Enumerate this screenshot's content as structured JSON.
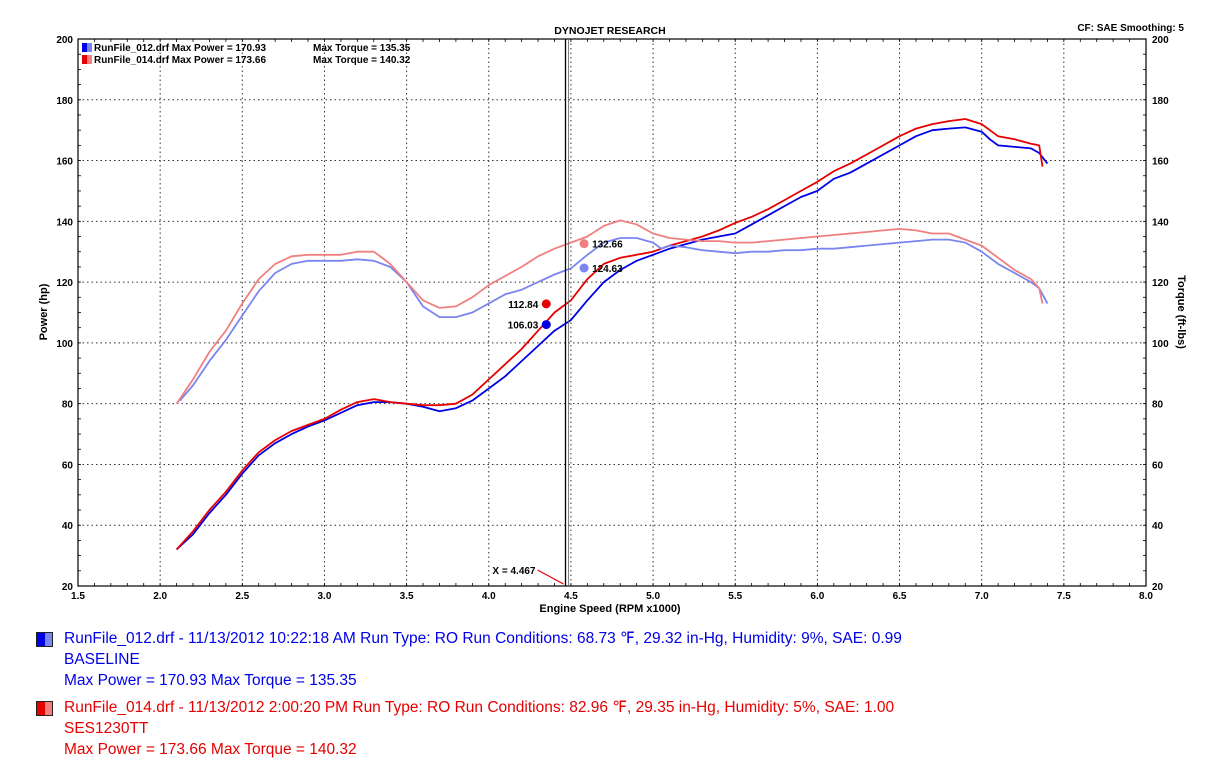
{
  "header": {
    "title": "DYNOJET RESEARCH",
    "cf_label": "CF: SAE  Smoothing: 5"
  },
  "chart_data": {
    "type": "line",
    "title": "DYNOJET RESEARCH",
    "xlabel": "Engine Speed (RPM x1000)",
    "ylabel": "Power (hp)",
    "y2label": "Torque (ft-lbs)",
    "xlim": [
      1.5,
      8.0
    ],
    "ylim": [
      20,
      200
    ],
    "y2lim": [
      20,
      200
    ],
    "x_ticks": [
      "1.5",
      "2.0",
      "2.5",
      "3.0",
      "3.5",
      "4.0",
      "4.5",
      "5.0",
      "5.5",
      "6.0",
      "6.5",
      "7.0",
      "7.5",
      "8.0"
    ],
    "y_ticks": [
      "20",
      "40",
      "60",
      "80",
      "100",
      "120",
      "140",
      "160",
      "180",
      "200"
    ],
    "grid": true,
    "legend_position": "top-left",
    "legend": [
      {
        "run": "RunFile_012.drf",
        "power_text": "Max Power = 170.93",
        "torque_text": "Max Torque = 135.35",
        "color": "#0000e6"
      },
      {
        "run": "RunFile_014.drf",
        "power_text": "Max Power = 173.66",
        "torque_text": "Max Torque = 140.32",
        "color": "#e60000"
      }
    ],
    "cursor": {
      "x": 4.467,
      "label": "X = 4.467"
    },
    "markers": [
      {
        "series": "RunFile_014.drf torque",
        "x": 4.58,
        "y": 132.66,
        "label": "132.66",
        "color": "#f08080"
      },
      {
        "series": "RunFile_012.drf torque",
        "x": 4.58,
        "y": 124.63,
        "label": "124.63",
        "color": "#7a85f0"
      },
      {
        "series": "RunFile_014.drf power",
        "x": 4.35,
        "y": 112.84,
        "label": "112.84",
        "color": "#e60000"
      },
      {
        "series": "RunFile_012.drf power",
        "x": 4.35,
        "y": 106.03,
        "label": "106.03",
        "color": "#0000e6"
      }
    ],
    "series": [
      {
        "name": "RunFile_012.drf",
        "kind": "power",
        "color": "#0000e6",
        "x": [
          2.1,
          2.2,
          2.3,
          2.4,
          2.5,
          2.6,
          2.7,
          2.8,
          2.9,
          3.0,
          3.1,
          3.2,
          3.3,
          3.4,
          3.5,
          3.6,
          3.7,
          3.8,
          3.9,
          4.0,
          4.1,
          4.2,
          4.3,
          4.4,
          4.5,
          4.6,
          4.7,
          4.8,
          4.9,
          5.0,
          5.1,
          5.2,
          5.3,
          5.4,
          5.5,
          5.6,
          5.7,
          5.8,
          5.9,
          6.0,
          6.1,
          6.2,
          6.3,
          6.4,
          6.5,
          6.6,
          6.7,
          6.8,
          6.9,
          7.0,
          7.05,
          7.1,
          7.2,
          7.3,
          7.35,
          7.4
        ],
        "y": [
          32,
          37,
          44,
          50,
          57,
          63,
          67,
          70,
          72.5,
          74.5,
          77,
          79.5,
          80.5,
          80.5,
          80,
          79,
          77.5,
          78.5,
          81,
          85,
          89,
          94,
          99,
          104,
          107.5,
          114,
          120,
          124,
          127,
          129,
          131,
          132.5,
          134,
          135,
          136,
          139,
          142,
          145,
          148,
          150,
          154,
          156,
          159,
          162,
          165,
          168,
          170,
          170.5,
          170.9,
          169.5,
          167,
          165,
          164.5,
          164,
          162.5,
          159
        ]
      },
      {
        "name": "RunFile_014.drf",
        "kind": "power",
        "color": "#e60000",
        "x": [
          2.1,
          2.2,
          2.3,
          2.4,
          2.5,
          2.6,
          2.7,
          2.8,
          2.9,
          3.0,
          3.1,
          3.2,
          3.3,
          3.4,
          3.5,
          3.6,
          3.7,
          3.8,
          3.9,
          4.0,
          4.1,
          4.2,
          4.3,
          4.4,
          4.5,
          4.6,
          4.7,
          4.8,
          4.9,
          5.0,
          5.1,
          5.2,
          5.3,
          5.4,
          5.5,
          5.6,
          5.7,
          5.8,
          5.9,
          6.0,
          6.1,
          6.2,
          6.3,
          6.4,
          6.5,
          6.6,
          6.7,
          6.8,
          6.9,
          7.0,
          7.05,
          7.1,
          7.2,
          7.3,
          7.35,
          7.37
        ],
        "y": [
          32,
          38,
          45,
          51,
          58,
          64,
          68,
          71,
          73,
          75,
          78,
          80.5,
          81.5,
          80.5,
          80,
          79.5,
          79.5,
          80,
          83,
          88,
          93,
          98,
          104,
          110,
          114,
          121,
          126,
          128,
          129,
          130,
          132,
          133.5,
          135,
          137,
          139.5,
          141.5,
          144,
          147,
          150,
          153,
          156.5,
          159,
          162,
          165,
          168,
          170.5,
          172,
          173,
          173.66,
          172,
          170,
          168,
          167,
          165.5,
          165,
          158
        ]
      },
      {
        "name": "RunFile_012.drf",
        "kind": "torque",
        "color": "#7a85f0",
        "x": [
          2.12,
          2.2,
          2.3,
          2.4,
          2.5,
          2.6,
          2.7,
          2.8,
          2.9,
          3.0,
          3.1,
          3.2,
          3.3,
          3.4,
          3.5,
          3.6,
          3.7,
          3.8,
          3.9,
          4.0,
          4.1,
          4.2,
          4.3,
          4.4,
          4.5,
          4.6,
          4.7,
          4.8,
          4.9,
          5.0,
          5.05,
          5.1,
          5.2,
          5.3,
          5.4,
          5.5,
          5.6,
          5.7,
          5.8,
          5.9,
          6.0,
          6.1,
          6.2,
          6.3,
          6.4,
          6.5,
          6.6,
          6.7,
          6.8,
          6.9,
          7.0,
          7.1,
          7.2,
          7.3,
          7.35,
          7.4
        ],
        "y": [
          81,
          86,
          94,
          101,
          109,
          117,
          123,
          126,
          127,
          127,
          127,
          127.5,
          127,
          125,
          120,
          112,
          108.5,
          108.5,
          110,
          113,
          116,
          117.5,
          120,
          122.5,
          124.5,
          129,
          133,
          134.5,
          134.5,
          133,
          131,
          132,
          131.5,
          130.5,
          130,
          129.5,
          130,
          130,
          130.5,
          130.5,
          131,
          131,
          131.5,
          132,
          132.5,
          133,
          133.5,
          134,
          134,
          133,
          130,
          126,
          123,
          120,
          118,
          113
        ]
      },
      {
        "name": "RunFile_014.drf",
        "kind": "torque",
        "color": "#f08080",
        "x": [
          2.1,
          2.2,
          2.3,
          2.4,
          2.5,
          2.6,
          2.7,
          2.8,
          2.9,
          3.0,
          3.1,
          3.2,
          3.3,
          3.4,
          3.5,
          3.6,
          3.7,
          3.8,
          3.9,
          4.0,
          4.1,
          4.2,
          4.3,
          4.4,
          4.5,
          4.6,
          4.7,
          4.8,
          4.9,
          5.0,
          5.1,
          5.2,
          5.3,
          5.4,
          5.5,
          5.6,
          5.7,
          5.8,
          5.9,
          6.0,
          6.1,
          6.2,
          6.3,
          6.4,
          6.5,
          6.6,
          6.7,
          6.8,
          6.9,
          7.0,
          7.1,
          7.2,
          7.3,
          7.35,
          7.37
        ],
        "y": [
          80,
          88,
          97,
          104,
          113,
          121,
          126,
          128.5,
          129,
          129,
          129,
          130,
          130,
          126,
          120,
          114,
          111.5,
          112,
          115,
          119,
          122,
          125,
          128.5,
          131,
          133,
          135,
          138.5,
          140.32,
          139,
          136,
          134.5,
          134,
          133.5,
          133.5,
          133,
          133,
          133.5,
          134,
          134.5,
          135,
          135.5,
          136,
          136.5,
          137,
          137.5,
          137,
          136,
          136,
          134,
          132,
          128,
          124,
          121,
          118,
          113
        ]
      }
    ]
  },
  "footer": {
    "runs": [
      {
        "color": "#0000e6",
        "swatch_light": "#7a85f0",
        "line1": "RunFile_012.drf - 11/13/2012 10:22:18 AM  Run Type: RO  Run Conditions: 68.73  ℉, 29.32 in-Hg,  Humidity:  9%, SAE: 0.99",
        "line2": "BASELINE",
        "line3": "Max Power = 170.93  Max Torque = 135.35"
      },
      {
        "color": "#e60000",
        "swatch_light": "#f08080",
        "line1": "RunFile_014.drf - 11/13/2012 2:00:20 PM  Run Type: RO  Run Conditions: 82.96  ℉, 29.35 in-Hg,  Humidity:  5%, SAE: 1.00",
        "line2": "SES1230TT",
        "line3": "Max Power = 173.66  Max Torque = 140.32"
      }
    ]
  }
}
